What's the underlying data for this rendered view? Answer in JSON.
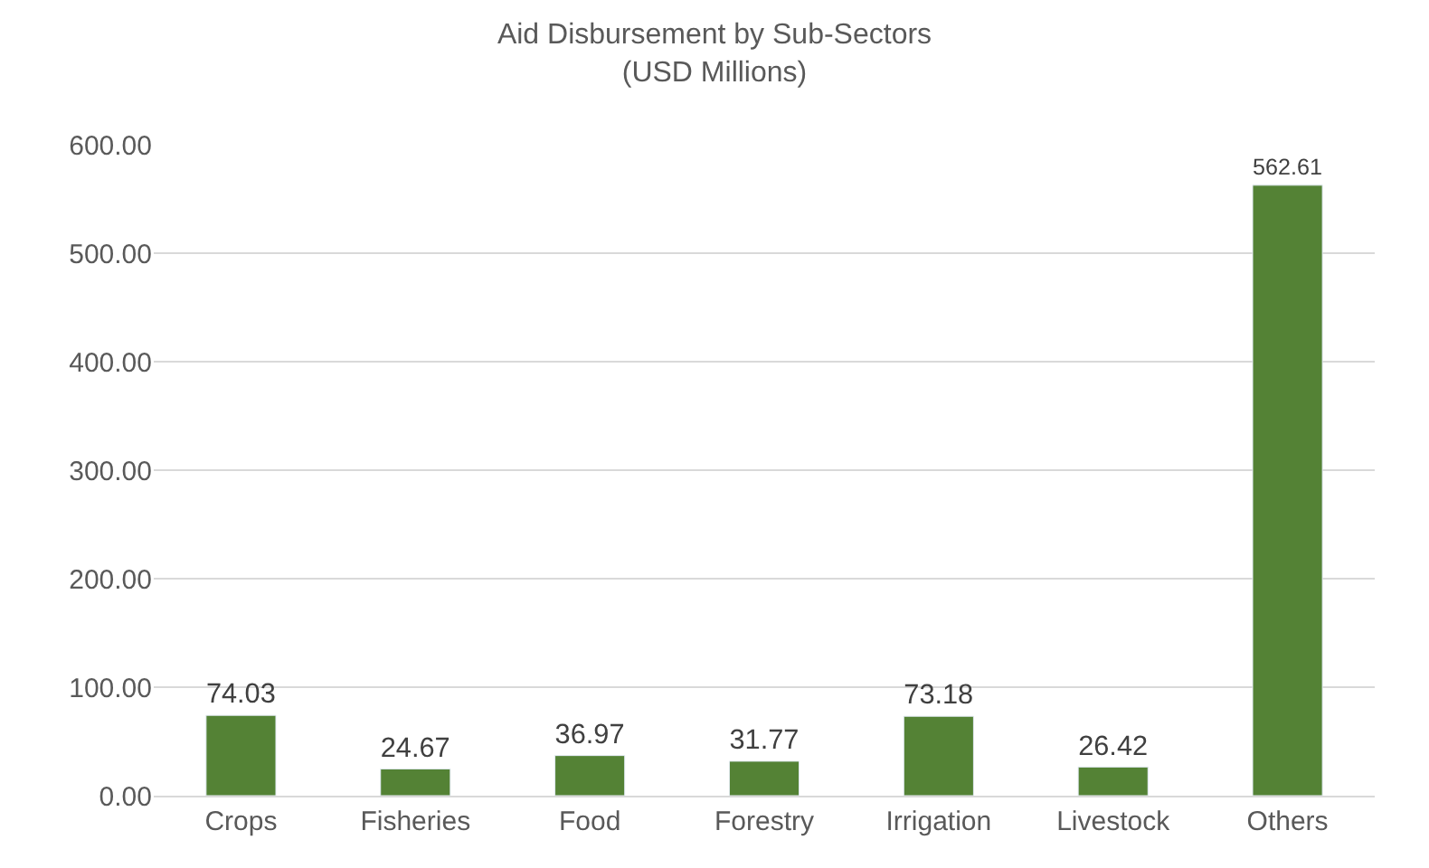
{
  "chart_data": {
    "type": "bar",
    "title": "Aid Disbursement by Sub-Sectors\n(USD Millions)",
    "categories": [
      "Crops",
      "Fisheries",
      "Food",
      "Forestry",
      "Irrigation",
      "Livestock",
      "Others"
    ],
    "values": [
      74.03,
      24.67,
      36.97,
      31.77,
      73.18,
      26.42,
      562.61
    ],
    "color": "#548235",
    "ylim": [
      0,
      600
    ],
    "yticks": [
      {
        "value": 0,
        "label": "0.00"
      },
      {
        "value": 100,
        "label": "100.00"
      },
      {
        "value": 200,
        "label": "200.00"
      },
      {
        "value": 300,
        "label": "300.00"
      },
      {
        "value": 400,
        "label": "400.00"
      },
      {
        "value": 500,
        "label": "500.00"
      },
      {
        "value": 600,
        "label": "600.00"
      }
    ],
    "grid": "y",
    "data_labels": true,
    "legend": false
  }
}
